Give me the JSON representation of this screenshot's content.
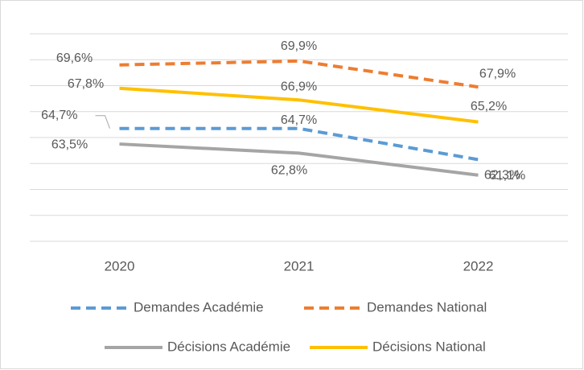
{
  "chart_data": {
    "type": "line",
    "categories": [
      "2020",
      "2021",
      "2022"
    ],
    "series": [
      {
        "name": "Demandes Académie",
        "color": "#5b9bd5",
        "dashed": true,
        "values": [
          64.7,
          64.7,
          62.3
        ],
        "value_labels": [
          "64,7%",
          "64,7%",
          "62,3%"
        ]
      },
      {
        "name": "Demandes National",
        "color": "#ed7d31",
        "dashed": true,
        "values": [
          69.6,
          69.9,
          67.9
        ],
        "value_labels": [
          "69,6%",
          "69,9%",
          "67,9%"
        ]
      },
      {
        "name": "Décisions Académie",
        "color": "#a5a5a5",
        "dashed": false,
        "values": [
          63.5,
          62.8,
          61.1
        ],
        "value_labels": [
          "63,5%",
          "62,8%",
          "61,1%"
        ]
      },
      {
        "name": "Décisions National",
        "color": "#ffc000",
        "dashed": false,
        "values": [
          67.8,
          66.9,
          65.2
        ],
        "value_labels": [
          "67,8%",
          "66,9%",
          "65,2%"
        ]
      }
    ],
    "ylim": [
      56,
      72
    ],
    "yticks": [
      56,
      58,
      60,
      62,
      64,
      66,
      68,
      70,
      72
    ],
    "grid": true,
    "legend": "bottom"
  }
}
